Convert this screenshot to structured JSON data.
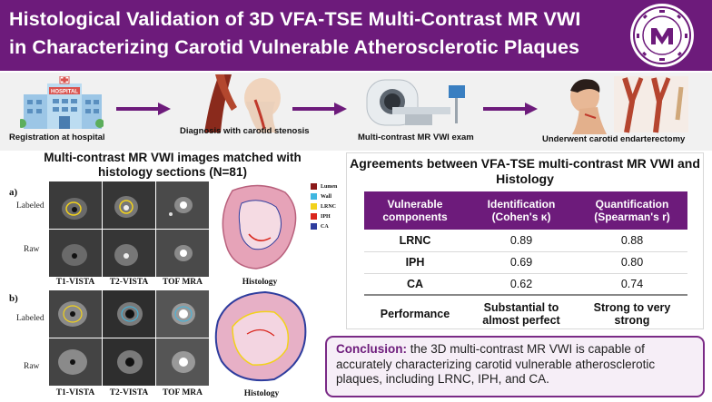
{
  "header": {
    "title_line1": "Histological Validation of 3D VFA-TSE Multi-Contrast MR VWI",
    "title_line2": "in Characterizing Carotid Vulnerable Atherosclerotic Plaques",
    "logo_icon": "university-seal-icon",
    "bg_color": "#6d1b7b"
  },
  "workflow": {
    "steps": [
      {
        "label": "Registration at hospital",
        "icon": "hospital-building-icon"
      },
      {
        "label": "Diagnosis with carotid stenosis",
        "icon": "carotid-artery-icon"
      },
      {
        "label": "Multi-contrast MR VWI exam",
        "icon": "mri-scanner-icon"
      },
      {
        "label": "Underwent carotid endarterectomy",
        "icon": "endarterectomy-icon"
      }
    ],
    "hospital_sign": "HOSPITAL",
    "arrow_color": "#6d1b7b"
  },
  "left_panel": {
    "title": "Multi-contrast MR VWI images matched with histology sections (N=81)",
    "rows": [
      {
        "letter": "a)",
        "labeled": "Labeled",
        "raw": "Raw"
      },
      {
        "letter": "b)",
        "labeled": "Labeled",
        "raw": "Raw"
      }
    ],
    "columns": [
      "T1-VISTA",
      "T2-VISTA",
      "TOF MRA",
      "Histology"
    ],
    "legend": [
      {
        "name": "Lumen",
        "color": "#8b1a1a"
      },
      {
        "name": "Wall",
        "color": "#3fb7e0"
      },
      {
        "name": "LRNC",
        "color": "#f2d21b"
      },
      {
        "name": "IPH",
        "color": "#d9261c"
      },
      {
        "name": "CA",
        "color": "#2e3d9e"
      }
    ]
  },
  "table": {
    "title": "Agreements between VFA-TSE multi-contrast MR VWI and Histology",
    "headers": [
      "Vulnerable components",
      "Identification (Cohen's κ)",
      "Quantification (Spearman's r)"
    ],
    "rows": [
      {
        "component": "LRNC",
        "identification": "0.89",
        "quantification": "0.88"
      },
      {
        "component": "IPH",
        "identification": "0.69",
        "quantification": "0.80"
      },
      {
        "component": "CA",
        "identification": "0.62",
        "quantification": "0.74"
      }
    ],
    "performance": {
      "label": "Performance",
      "identification": "Substantial to almost perfect",
      "quantification": "Strong to very strong"
    }
  },
  "conclusion": {
    "lead": "Conclusion:",
    "text": "the 3D multi-contrast MR VWI is capable of accurately characterizing carotid vulnerable atherosclerotic plaques, including LRNC, IPH, and CA."
  }
}
